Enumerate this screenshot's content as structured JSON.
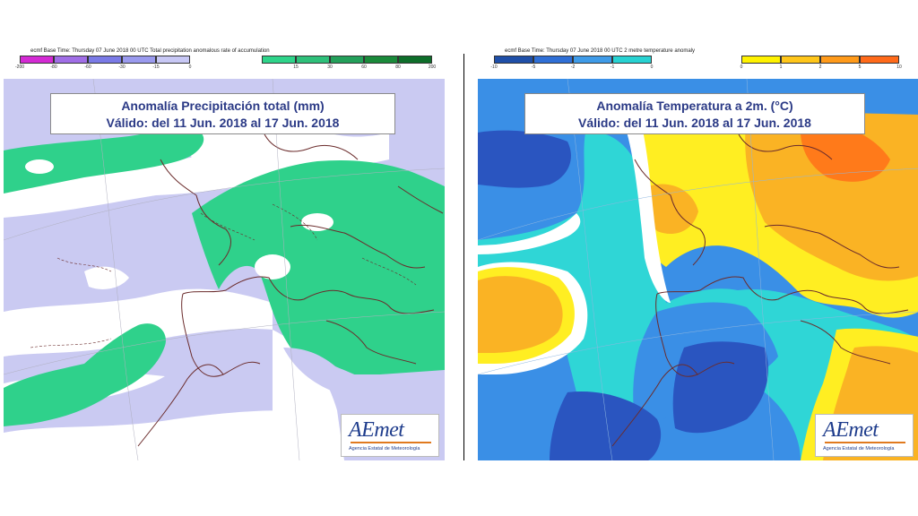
{
  "left_map": {
    "header": "ecmf  Base Time: Thursday 07 June 2018 00 UTC Total precipitation anomalous rate of accumulation",
    "title_line1": "Anomalía Precipitación total (mm)",
    "title_line2": "Válido: del 11 Jun. 2018 al 17 Jun. 2018",
    "legend_ticks": [
      "-200",
      "-80",
      "-60",
      "-30",
      "-15",
      "0",
      "",
      "15",
      "30",
      "60",
      "80",
      "200"
    ],
    "legend_colors": [
      "#d42ad4",
      "#a06ee6",
      "#7a7ae6",
      "#9a9aee",
      "#c8c8f5",
      "#ffffff",
      "#2ed48a",
      "#2ec07a",
      "#23a05a",
      "#1a8a3a",
      "#0e6e2a"
    ],
    "colors": {
      "negative": "#cacaf2",
      "positive": "#2fd18b",
      "neutral": "#ffffff",
      "coast": "#6b2c2c"
    },
    "logo": "AEmet",
    "logo_subtitle": "Agencia Estatal de Meteorología"
  },
  "right_map": {
    "header": "ecmf  Base Time: Thursday 07 June 2018 00 UTC 2 metre temperature anomaly",
    "title_line1": "Anomalía Temperatura a 2m. (°C)",
    "title_line2": "Válido: del 11 Jun. 2018 al 17 Jun. 2018",
    "legend_ticks": [
      "-10",
      "-5",
      "-2",
      "-1",
      "0",
      "",
      "0",
      "1",
      "2",
      "5",
      "10"
    ],
    "legend_colors": [
      "#1f4fa8",
      "#2f6fd6",
      "#3f9be8",
      "#28d2d2",
      "#ffffff",
      "#ffffff",
      "#fff200",
      "#ffc61a",
      "#ff9a1a",
      "#ff6a1a"
    ],
    "colors": {
      "cold_strong": "#2a55c0",
      "cold": "#3a8fe6",
      "cool": "#2fd6d6",
      "neutral": "#ffffff",
      "warm": "#ffee22",
      "warmer": "#fab324",
      "hot": "#ff7a1a",
      "coast": "#6b2c2c"
    },
    "logo": "AEmet",
    "logo_subtitle": "Agencia Estatal de Meteorología"
  }
}
